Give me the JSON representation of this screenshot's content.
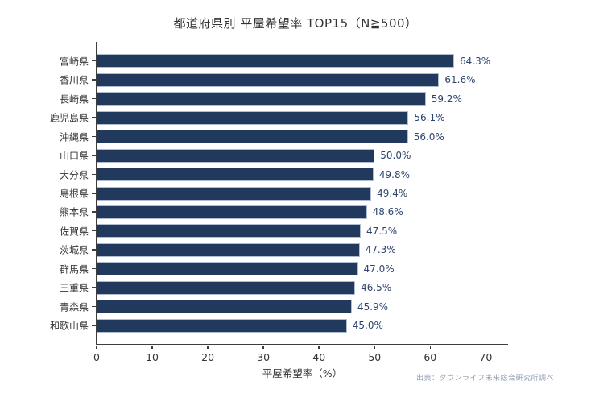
{
  "title": "都道府県別 平屋希望率 TOP15（N≧500）",
  "source_note": "出典：タウンライフ未来総合研究所調べ",
  "colors": {
    "background": "#ffffff",
    "bar": "#20395c",
    "bar_edge": "#aebdd1",
    "value_text": "#2e4470",
    "axis": "#3d3d3d",
    "text": "#333333",
    "source_text": "#8f9db3"
  },
  "chart_data": {
    "type": "bar",
    "orientation": "horizontal",
    "title": "都道府県別 平屋希望率 TOP15（N≧500）",
    "categories": [
      "宮崎県",
      "香川県",
      "長崎県",
      "鹿児島県",
      "沖縄県",
      "山口県",
      "大分県",
      "島根県",
      "熊本県",
      "佐賀県",
      "茨城県",
      "群馬県",
      "三重県",
      "青森県",
      "和歌山県"
    ],
    "values": [
      64.3,
      61.6,
      59.2,
      56.1,
      56.0,
      50.0,
      49.8,
      49.4,
      48.6,
      47.5,
      47.3,
      47.0,
      46.5,
      45.9,
      45.0
    ],
    "value_labels": [
      "64.3%",
      "61.6%",
      "59.2%",
      "56.1%",
      "56.0%",
      "50.0%",
      "49.8%",
      "49.4%",
      "48.6%",
      "47.5%",
      "47.3%",
      "47.0%",
      "46.5%",
      "45.9%",
      "45.0%"
    ],
    "xlabel": "平屋希望率（%）",
    "ylabel": "",
    "xticks": [
      0,
      10,
      20,
      30,
      40,
      50,
      60,
      70
    ],
    "xlim": [
      0,
      74
    ],
    "grid": false,
    "legend": null
  }
}
